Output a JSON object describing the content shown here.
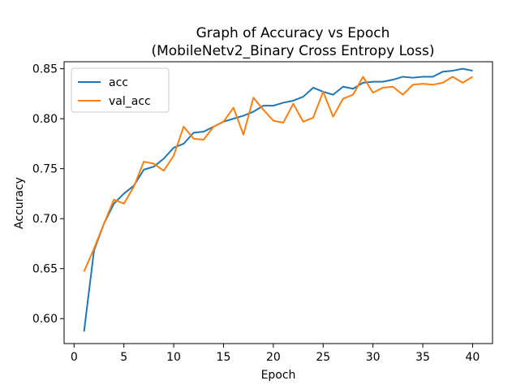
{
  "chart_data": {
    "type": "line",
    "title": "Graph of Accuracy vs Epoch",
    "subtitle": "(MobileNetv2_Binary Cross Entropy Loss)",
    "xlabel": "Epoch",
    "ylabel": "Accuracy",
    "xlim": [
      -1,
      42
    ],
    "ylim": [
      0.575,
      0.857
    ],
    "xticks": [
      0,
      5,
      10,
      15,
      20,
      25,
      30,
      35,
      40
    ],
    "yticks": [
      0.6,
      0.65,
      0.7,
      0.75,
      0.8,
      0.85
    ],
    "grid": false,
    "legend_position": "top-left",
    "x": [
      1,
      2,
      3,
      4,
      5,
      6,
      7,
      8,
      9,
      10,
      11,
      12,
      13,
      14,
      15,
      16,
      17,
      18,
      19,
      20,
      21,
      22,
      23,
      24,
      25,
      26,
      27,
      28,
      29,
      30,
      31,
      32,
      33,
      34,
      35,
      36,
      37,
      38,
      39,
      40
    ],
    "series": [
      {
        "name": "acc",
        "color": "#1f77b4",
        "values": [
          0.587,
          0.668,
          0.695,
          0.715,
          0.725,
          0.733,
          0.749,
          0.752,
          0.76,
          0.771,
          0.775,
          0.786,
          0.787,
          0.792,
          0.797,
          0.8,
          0.803,
          0.807,
          0.813,
          0.813,
          0.816,
          0.818,
          0.822,
          0.831,
          0.827,
          0.824,
          0.832,
          0.83,
          0.836,
          0.837,
          0.837,
          0.839,
          0.842,
          0.841,
          0.842,
          0.842,
          0.847,
          0.848,
          0.85,
          0.848
        ]
      },
      {
        "name": "val_acc",
        "color": "#ff7f0e",
        "values": [
          0.647,
          0.67,
          0.695,
          0.719,
          0.715,
          0.732,
          0.757,
          0.755,
          0.748,
          0.763,
          0.792,
          0.78,
          0.779,
          0.792,
          0.797,
          0.811,
          0.784,
          0.821,
          0.809,
          0.798,
          0.796,
          0.815,
          0.797,
          0.801,
          0.827,
          0.802,
          0.82,
          0.824,
          0.842,
          0.826,
          0.831,
          0.832,
          0.824,
          0.834,
          0.835,
          0.834,
          0.836,
          0.842,
          0.836,
          0.842
        ]
      }
    ]
  }
}
